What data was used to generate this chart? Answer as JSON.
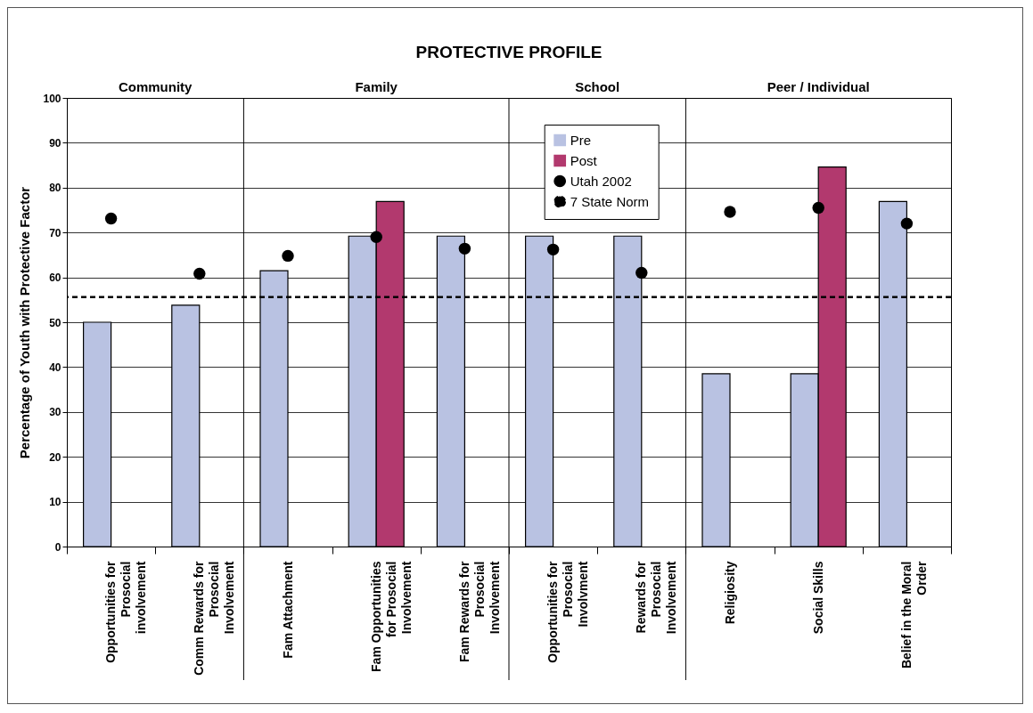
{
  "chart_data": {
    "type": "bar",
    "title": "PROTECTIVE PROFILE",
    "ylabel": "Percentage of Youth with Protective Factor",
    "categories": [
      "Opportunities for Prosocial involvement",
      "Comm Rewards for Prosocial Involvement",
      "Fam Attachment",
      "Fam Opportunities for Prosocial Involvement",
      "Fam Rewards for Prosocial Involvement",
      "Opportunities for Prosocial Involvment",
      "Rewards for Prosocial Involvement",
      "Religiosity",
      "Social Skills",
      "Belief in the Moral Order"
    ],
    "series": [
      {
        "name": "Pre",
        "type": "bar",
        "color": "#b9c2e2",
        "values": [
          50,
          53.8,
          61.5,
          69.2,
          69.2,
          69.2,
          69.2,
          38.5,
          38.5,
          76.9
        ]
      },
      {
        "name": "Post",
        "type": "bar",
        "color": "#b2396e",
        "values": [
          null,
          null,
          null,
          76.9,
          null,
          null,
          null,
          null,
          84.6,
          null
        ]
      },
      {
        "name": "Utah 2002",
        "type": "scatter",
        "marker": "circle",
        "color": "#000000",
        "values": [
          73.1,
          60.8,
          64.8,
          69,
          66.4,
          66.2,
          61,
          74.6,
          75.5,
          72
        ]
      }
    ],
    "ref_lines": [
      {
        "axis": "y",
        "value": 55.6,
        "label": "7 State Norm",
        "color": "#000000",
        "line_style": "dashed"
      }
    ],
    "annotations": [
      "Community",
      "Family",
      "School",
      "Peer / Individual"
    ],
    "ylim": [
      0,
      100
    ],
    "yticks": [
      0,
      10,
      20,
      30,
      40,
      50,
      60,
      70,
      80,
      90,
      100
    ],
    "grid": "y",
    "legend": "top"
  }
}
